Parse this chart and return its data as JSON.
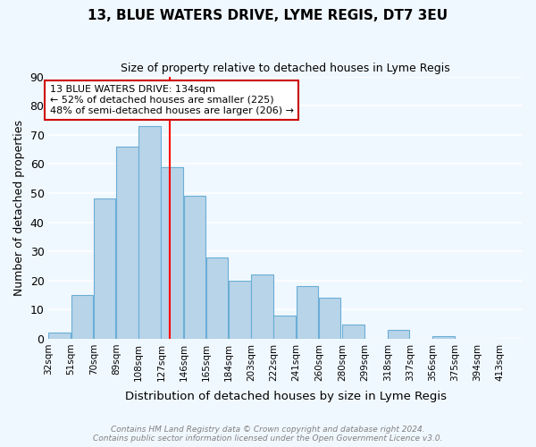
{
  "title": "13, BLUE WATERS DRIVE, LYME REGIS, DT7 3EU",
  "subtitle": "Size of property relative to detached houses in Lyme Regis",
  "xlabel": "Distribution of detached houses by size in Lyme Regis",
  "ylabel": "Number of detached properties",
  "bin_labels": [
    "32sqm",
    "51sqm",
    "70sqm",
    "89sqm",
    "108sqm",
    "127sqm",
    "146sqm",
    "165sqm",
    "184sqm",
    "203sqm",
    "222sqm",
    "241sqm",
    "260sqm",
    "280sqm",
    "299sqm",
    "318sqm",
    "337sqm",
    "356sqm",
    "375sqm",
    "394sqm",
    "413sqm"
  ],
  "bin_edges": [
    32,
    51,
    70,
    89,
    108,
    127,
    146,
    165,
    184,
    203,
    222,
    241,
    260,
    280,
    299,
    318,
    337,
    356,
    375,
    394,
    413
  ],
  "bar_heights": [
    2,
    15,
    48,
    66,
    73,
    59,
    49,
    28,
    20,
    22,
    8,
    18,
    14,
    5,
    0,
    3,
    0,
    1,
    0,
    0
  ],
  "bar_color": "#b8d4e8",
  "bar_edge_color": "#6aaed6",
  "property_line_x": 134,
  "property_line_color": "red",
  "ylim": [
    0,
    90
  ],
  "yticks": [
    0,
    10,
    20,
    30,
    40,
    50,
    60,
    70,
    80,
    90
  ],
  "annotation_title": "13 BLUE WATERS DRIVE: 134sqm",
  "annotation_line1": "← 52% of detached houses are smaller (225)",
  "annotation_line2": "48% of semi-detached houses are larger (206) →",
  "annotation_box_color": "white",
  "annotation_box_edge": "#cc0000",
  "footer_line1": "Contains HM Land Registry data © Crown copyright and database right 2024.",
  "footer_line2": "Contains public sector information licensed under the Open Government Licence v3.0.",
  "background_color": "#f0f8ff",
  "grid_color": "white"
}
